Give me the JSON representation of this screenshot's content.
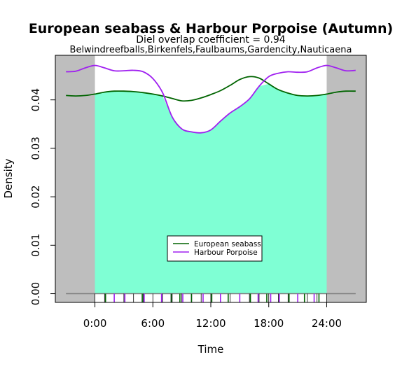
{
  "chart_data": {
    "type": "line",
    "title": "European seabass & Harbour Porpoise (Autumn)",
    "subtitle": "Diel overlap coefficient =  0.94",
    "sites": "Belwindreefballs,Birkenfels,Faulbaums,Gardencity,Nauticaena",
    "xlabel": "Time",
    "ylabel": "Density",
    "xlim": [
      -4.1,
      28.1
    ],
    "ylim": [
      -0.0018,
      0.0492
    ],
    "x_ticks": [
      0,
      6,
      12,
      18,
      24
    ],
    "x_tick_labels": [
      "0:00",
      "6:00",
      "12:00",
      "18:00",
      "24:00"
    ],
    "y_ticks": [
      0,
      0.01,
      0.02,
      0.03,
      0.04
    ],
    "y_tick_labels": [
      "0.00",
      "0.01",
      "0.02",
      "0.03",
      "0.04"
    ],
    "night_shading": [
      [
        -4.1,
        0
      ],
      [
        24,
        28.1
      ]
    ],
    "overlap_shading": true,
    "legend_position": "center-bottom",
    "colors": {
      "European seabass": "#006400",
      "Harbour Porpoise": "#a020f0",
      "overlap": "#7fffd4",
      "night": "#bebebe"
    },
    "series": [
      {
        "name": "European seabass",
        "x": [
          -3,
          -2,
          -1,
          0,
          1,
          2,
          3,
          4,
          5,
          6,
          7,
          8,
          9,
          10,
          11,
          12,
          13,
          14,
          15,
          16,
          17,
          18,
          19,
          20,
          21,
          22,
          23,
          24,
          25,
          26,
          27
        ],
        "values": [
          0.0409,
          0.0408,
          0.0409,
          0.0412,
          0.0416,
          0.0418,
          0.0418,
          0.0417,
          0.0415,
          0.0412,
          0.0408,
          0.0403,
          0.0398,
          0.0399,
          0.0404,
          0.0411,
          0.0419,
          0.043,
          0.0442,
          0.0448,
          0.0445,
          0.0433,
          0.0421,
          0.0414,
          0.0409,
          0.0408,
          0.0409,
          0.0412,
          0.0416,
          0.0418,
          0.0418
        ]
      },
      {
        "name": "Harbour Porpoise",
        "x": [
          -3,
          -2,
          -1,
          0,
          1,
          2,
          3,
          4,
          5,
          6,
          7,
          8,
          9,
          10,
          11,
          12,
          13,
          14,
          15,
          16,
          17,
          18,
          19,
          20,
          21,
          22,
          23,
          24,
          25,
          26,
          27
        ],
        "values": [
          0.0458,
          0.0459,
          0.0466,
          0.0471,
          0.0466,
          0.046,
          0.046,
          0.0461,
          0.0458,
          0.0444,
          0.0415,
          0.0365,
          0.034,
          0.0334,
          0.0332,
          0.0338,
          0.0356,
          0.0373,
          0.0386,
          0.0402,
          0.0428,
          0.0448,
          0.0455,
          0.0458,
          0.0457,
          0.0458,
          0.0466,
          0.0471,
          0.0466,
          0.046,
          0.0461
        ]
      }
    ],
    "seabass_obs_times": [
      1.1,
      4.9,
      7.9,
      8.8,
      10.0,
      12.1,
      13.8,
      16.1,
      17.8,
      20.1,
      21.7,
      23.2
    ],
    "porpoise_obs_times": [
      1.1,
      2.0,
      3.1,
      5.1,
      6.9,
      7.9,
      9.1,
      10.0,
      11.2,
      13.0,
      15.0,
      16.9,
      18.2,
      19.1,
      21.0,
      22.7
    ]
  }
}
